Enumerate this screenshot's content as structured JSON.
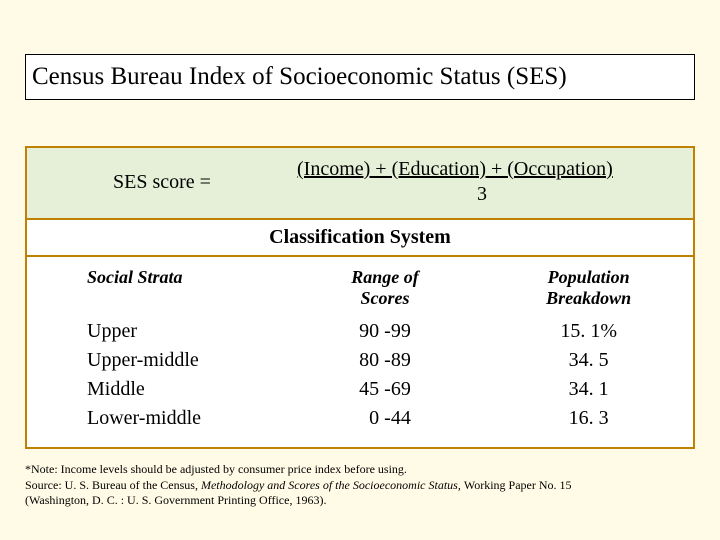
{
  "title": "Census Bureau Index of Socioeconomic Status (SES)",
  "formula": {
    "lhs": "SES  score  =",
    "numerator": "(Income) + (Education) + (Occupation)",
    "denominator": "3"
  },
  "classification_heading": "Classification System",
  "columns": {
    "strata": "Social Strata",
    "range": "Range of\nScores",
    "pop": "Population\nBreakdown"
  },
  "rows": [
    {
      "strata": "Upper",
      "range": "90 -99",
      "pop": "15. 1%"
    },
    {
      "strata": "Upper-middle",
      "range": "80 -89",
      "pop": "34. 5"
    },
    {
      "strata": "Middle",
      "range": "45 -69",
      "pop": "34. 1"
    },
    {
      "strata": "Lower-middle",
      "range": "  0 -44",
      "pop": "16. 3"
    }
  ],
  "footnote": {
    "line1": "*Note: Income levels should be adjusted by consumer price index before using.",
    "line2a": "Source: U. S. Bureau of the Census, ",
    "line2i": "Methodology and Scores of the Socioeconomic Status, ",
    "line2b": "Working Paper No. 15",
    "line3": "(Washington, D. C. : U. S. Government Printing Office, 1963)."
  },
  "colors": {
    "page_bg": "#fffbe6",
    "box_border": "#c08000",
    "formula_bg": "#e6f0d8",
    "text": "#000000"
  }
}
